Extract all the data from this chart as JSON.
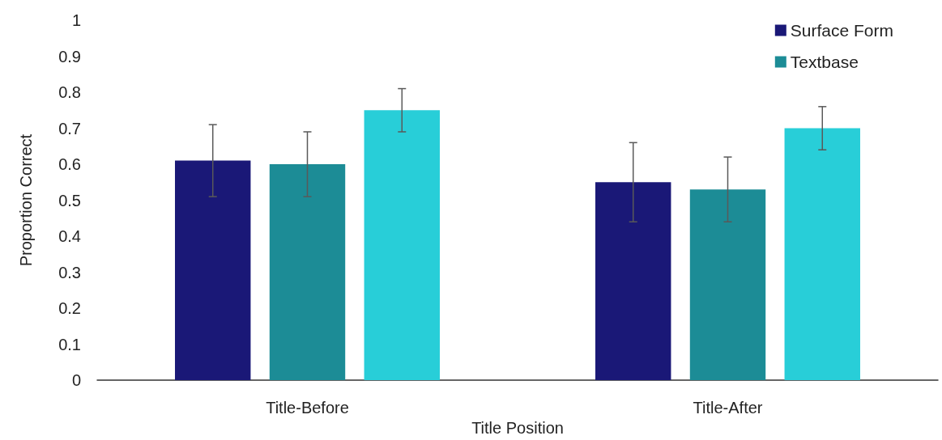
{
  "chart_data": {
    "type": "bar",
    "xlabel": "Title Position",
    "ylabel": "Proportion Correct",
    "categories": [
      "Title-Before",
      "Title-After"
    ],
    "series": [
      {
        "name": "Surface Form",
        "color": "#1a1877",
        "values": [
          0.61,
          0.55
        ],
        "errors": [
          0.1,
          0.11
        ]
      },
      {
        "name": "Textbase",
        "color": "#1c8c96",
        "values": [
          0.6,
          0.53
        ],
        "errors": [
          0.09,
          0.09
        ]
      },
      {
        "color": "#28ced8",
        "values": [
          0.75,
          0.7
        ],
        "errors": [
          0.06,
          0.06
        ]
      }
    ],
    "ylim": [
      0,
      1
    ],
    "yticks": [
      0,
      0.1,
      0.2,
      0.3,
      0.4,
      0.5,
      0.6,
      0.7,
      0.8,
      0.9,
      1
    ],
    "grid": false,
    "legend": "top right"
  }
}
